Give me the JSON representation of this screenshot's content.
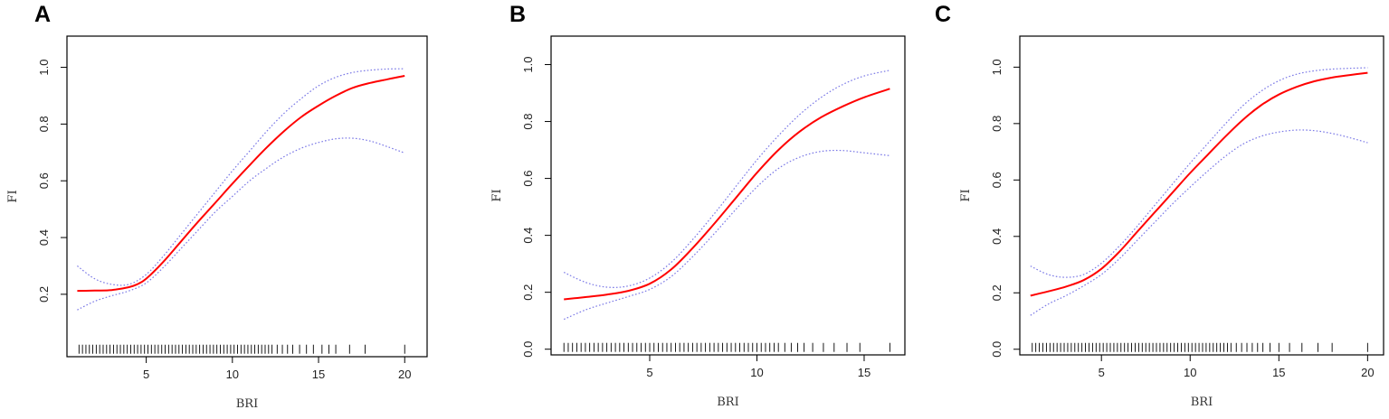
{
  "colors": {
    "fit": "#ff0000",
    "ci": "#7a78e6",
    "axis": "#000000"
  },
  "chart_data": [
    {
      "panel": "A",
      "type": "line",
      "xlabel": "BRI",
      "ylabel": "FI",
      "xlim": [
        0.4,
        21.3
      ],
      "ylim": [
        -0.02,
        1.11
      ],
      "xticks": [
        5,
        10,
        15,
        20
      ],
      "yticks": [
        0.2,
        0.4,
        0.6,
        0.8,
        1.0
      ],
      "ytick_labels": [
        "0.2",
        "0.4",
        "0.6",
        "0.8",
        "1.0"
      ],
      "series": [
        {
          "role": "fit",
          "x": [
            1,
            2,
            3,
            4,
            4.5,
            5,
            6,
            7,
            8,
            9,
            10,
            11,
            12,
            13,
            14,
            15,
            16,
            17,
            18,
            19,
            20
          ],
          "y": [
            0.212,
            0.213,
            0.215,
            0.225,
            0.236,
            0.255,
            0.315,
            0.385,
            0.455,
            0.522,
            0.59,
            0.655,
            0.718,
            0.775,
            0.825,
            0.865,
            0.9,
            0.928,
            0.945,
            0.958,
            0.97
          ]
        },
        {
          "role": "upper",
          "x": [
            1,
            2,
            3,
            4,
            5,
            6,
            7,
            8,
            9,
            10,
            11,
            12,
            13,
            14,
            15,
            16,
            17,
            18,
            19,
            20
          ],
          "y": [
            0.3,
            0.255,
            0.235,
            0.235,
            0.27,
            0.335,
            0.41,
            0.485,
            0.56,
            0.635,
            0.705,
            0.775,
            0.838,
            0.89,
            0.935,
            0.965,
            0.982,
            0.99,
            0.994,
            0.995
          ]
        },
        {
          "role": "lower",
          "x": [
            1,
            2,
            3,
            4,
            5,
            6,
            7,
            8,
            9,
            10,
            11,
            12,
            13,
            14,
            15,
            16,
            17,
            18,
            19,
            20
          ],
          "y": [
            0.145,
            0.175,
            0.195,
            0.212,
            0.24,
            0.295,
            0.36,
            0.425,
            0.49,
            0.545,
            0.6,
            0.645,
            0.685,
            0.715,
            0.735,
            0.748,
            0.75,
            0.74,
            0.72,
            0.698
          ]
        }
      ],
      "rug": [
        1.1,
        1.3,
        1.5,
        1.7,
        1.9,
        2.1,
        2.3,
        2.5,
        2.7,
        2.9,
        3.1,
        3.3,
        3.5,
        3.7,
        3.9,
        4.1,
        4.3,
        4.5,
        4.7,
        4.9,
        5.1,
        5.3,
        5.5,
        5.7,
        5.9,
        6.1,
        6.3,
        6.5,
        6.7,
        6.9,
        7.1,
        7.3,
        7.5,
        7.7,
        7.9,
        8.1,
        8.3,
        8.5,
        8.7,
        8.9,
        9.1,
        9.3,
        9.5,
        9.7,
        9.9,
        10.1,
        10.3,
        10.5,
        10.7,
        10.9,
        11.1,
        11.3,
        11.5,
        11.7,
        11.9,
        12.1,
        12.3,
        12.6,
        12.9,
        13.2,
        13.5,
        13.9,
        14.3,
        14.7,
        15.2,
        15.6,
        16.0,
        16.8,
        17.7,
        20.0
      ]
    },
    {
      "panel": "B",
      "type": "line",
      "xlabel": "BRI",
      "ylabel": "FI",
      "xlim": [
        0.4,
        16.9
      ],
      "ylim": [
        -0.02,
        1.1
      ],
      "xticks": [
        5,
        10,
        15
      ],
      "yticks": [
        0.0,
        0.2,
        0.4,
        0.6,
        0.8,
        1.0
      ],
      "ytick_labels": [
        "0.0",
        "0.2",
        "0.4",
        "0.6",
        "0.8",
        "1.0"
      ],
      "series": [
        {
          "role": "fit",
          "x": [
            1,
            2,
            3,
            4,
            5,
            6,
            7,
            8,
            9,
            10,
            11,
            12,
            13,
            14,
            15,
            16.2
          ],
          "y": [
            0.175,
            0.183,
            0.192,
            0.205,
            0.23,
            0.28,
            0.355,
            0.44,
            0.53,
            0.62,
            0.7,
            0.765,
            0.815,
            0.853,
            0.885,
            0.915
          ]
        },
        {
          "role": "upper",
          "x": [
            1,
            2,
            3,
            4,
            5,
            6,
            7,
            8,
            9,
            10,
            11,
            12,
            13,
            14,
            15,
            16.2
          ],
          "y": [
            0.27,
            0.235,
            0.218,
            0.222,
            0.25,
            0.305,
            0.385,
            0.475,
            0.57,
            0.665,
            0.75,
            0.825,
            0.885,
            0.93,
            0.96,
            0.98
          ]
        },
        {
          "role": "lower",
          "x": [
            1,
            2,
            3,
            4,
            5,
            6,
            7,
            8,
            9,
            10,
            11,
            12,
            13,
            14,
            15,
            16.2
          ],
          "y": [
            0.105,
            0.138,
            0.162,
            0.185,
            0.21,
            0.255,
            0.325,
            0.405,
            0.49,
            0.57,
            0.635,
            0.675,
            0.695,
            0.698,
            0.69,
            0.68
          ]
        }
      ],
      "rug": [
        1.0,
        1.2,
        1.4,
        1.6,
        1.8,
        2.0,
        2.2,
        2.4,
        2.6,
        2.8,
        3.0,
        3.2,
        3.4,
        3.6,
        3.8,
        4.0,
        4.2,
        4.4,
        4.6,
        4.8,
        5.0,
        5.2,
        5.4,
        5.6,
        5.8,
        6.0,
        6.2,
        6.4,
        6.6,
        6.8,
        7.0,
        7.2,
        7.4,
        7.6,
        7.8,
        8.0,
        8.2,
        8.4,
        8.6,
        8.8,
        9.0,
        9.2,
        9.4,
        9.6,
        9.8,
        10.0,
        10.2,
        10.4,
        10.6,
        10.8,
        11.0,
        11.3,
        11.6,
        11.9,
        12.2,
        12.6,
        13.1,
        13.6,
        14.2,
        14.8,
        16.2
      ]
    },
    {
      "panel": "C",
      "type": "line",
      "xlabel": "BRI",
      "ylabel": "FI",
      "xlim": [
        0.4,
        20.9
      ],
      "ylim": [
        -0.02,
        1.11
      ],
      "xticks": [
        5,
        10,
        15,
        20
      ],
      "yticks": [
        0.0,
        0.2,
        0.4,
        0.6,
        0.8,
        1.0
      ],
      "ytick_labels": [
        "0.0",
        "0.2",
        "0.4",
        "0.6",
        "0.8",
        "1.0"
      ],
      "series": [
        {
          "role": "fit",
          "x": [
            1,
            2,
            3,
            4,
            5,
            6,
            7,
            8,
            9,
            10,
            11,
            12,
            13,
            14,
            15,
            16,
            17,
            18,
            19,
            20
          ],
          "y": [
            0.19,
            0.205,
            0.222,
            0.245,
            0.285,
            0.345,
            0.415,
            0.485,
            0.555,
            0.625,
            0.69,
            0.755,
            0.815,
            0.865,
            0.903,
            0.93,
            0.95,
            0.963,
            0.972,
            0.98
          ]
        },
        {
          "role": "upper",
          "x": [
            1,
            2,
            3,
            4,
            5,
            6,
            7,
            8,
            9,
            10,
            11,
            12,
            13,
            14,
            15,
            16,
            17,
            18,
            19,
            20
          ],
          "y": [
            0.295,
            0.265,
            0.255,
            0.265,
            0.305,
            0.365,
            0.435,
            0.51,
            0.585,
            0.66,
            0.73,
            0.8,
            0.865,
            0.915,
            0.952,
            0.975,
            0.987,
            0.993,
            0.996,
            0.998
          ]
        },
        {
          "role": "lower",
          "x": [
            1,
            2,
            3,
            4,
            5,
            6,
            7,
            8,
            9,
            10,
            11,
            12,
            13,
            14,
            15,
            16,
            17,
            18,
            19,
            20
          ],
          "y": [
            0.12,
            0.16,
            0.19,
            0.225,
            0.265,
            0.32,
            0.385,
            0.45,
            0.515,
            0.575,
            0.632,
            0.685,
            0.728,
            0.755,
            0.77,
            0.777,
            0.775,
            0.765,
            0.75,
            0.732
          ]
        }
      ],
      "rug": [
        1.1,
        1.3,
        1.5,
        1.7,
        1.9,
        2.1,
        2.3,
        2.5,
        2.7,
        2.9,
        3.1,
        3.3,
        3.5,
        3.7,
        3.9,
        4.1,
        4.3,
        4.5,
        4.7,
        4.9,
        5.1,
        5.3,
        5.5,
        5.7,
        5.9,
        6.1,
        6.3,
        6.5,
        6.7,
        6.9,
        7.1,
        7.3,
        7.5,
        7.7,
        7.9,
        8.1,
        8.3,
        8.5,
        8.7,
        8.9,
        9.1,
        9.3,
        9.5,
        9.7,
        9.9,
        10.1,
        10.3,
        10.5,
        10.7,
        10.9,
        11.1,
        11.3,
        11.5,
        11.7,
        11.9,
        12.1,
        12.3,
        12.6,
        12.9,
        13.2,
        13.5,
        13.8,
        14.1,
        14.5,
        15.0,
        15.6,
        16.3,
        17.2,
        18.0,
        20.0
      ]
    }
  ]
}
